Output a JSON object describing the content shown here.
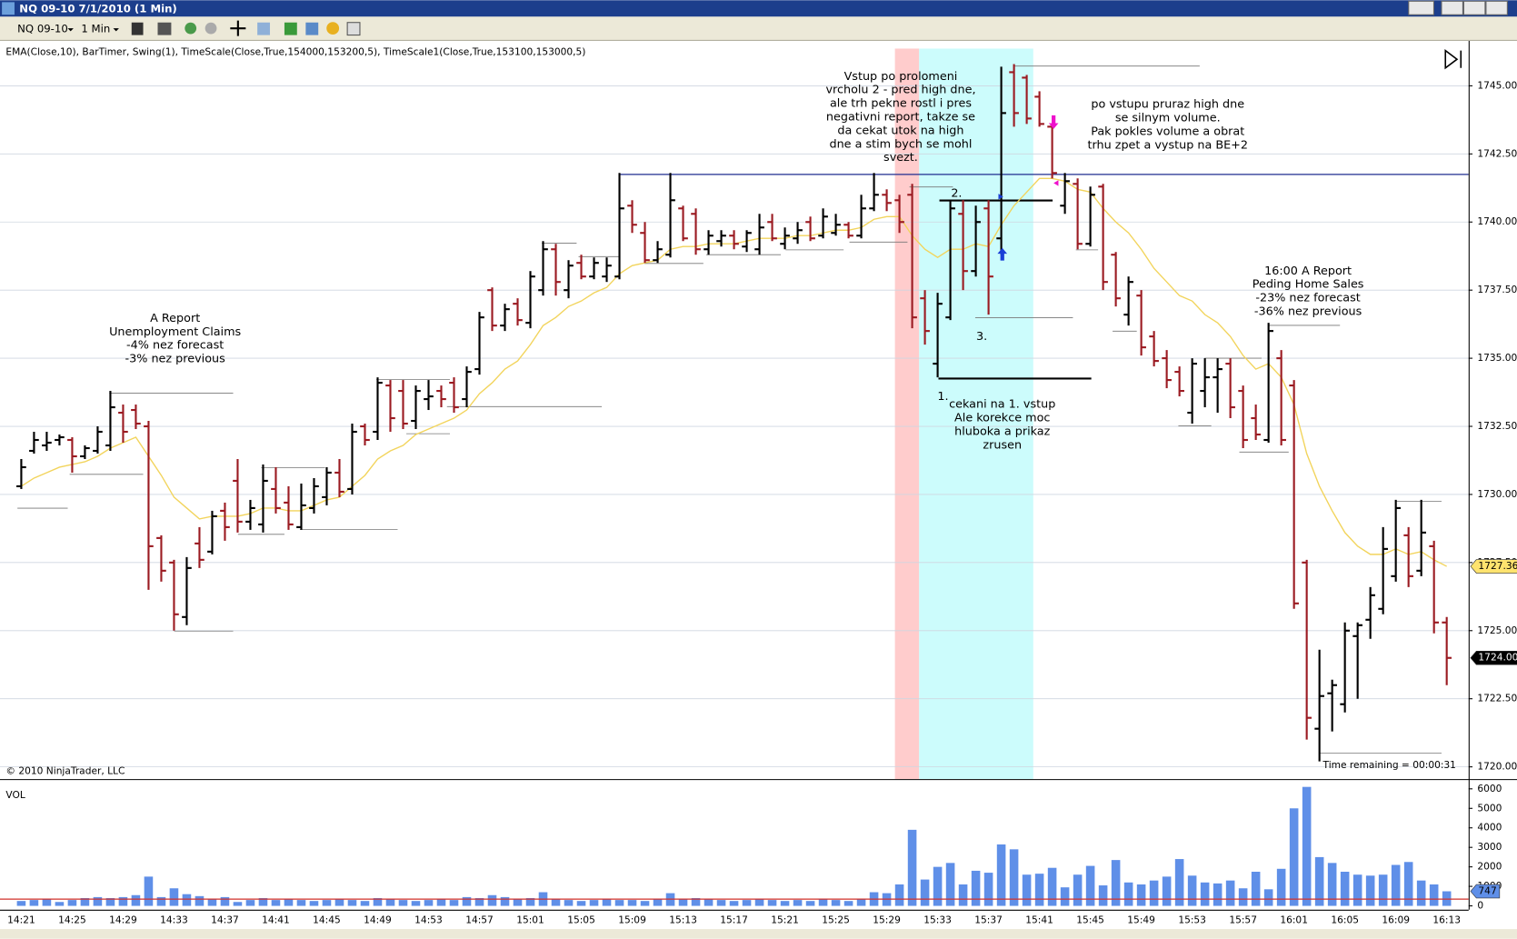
{
  "window": {
    "title": "NQ 09-10  7/1/2010 (1 Min)"
  },
  "toolbar": {
    "instrument": "NQ 09-10",
    "interval": "1 Min"
  },
  "chart_data": [
    {
      "type": "ohlc",
      "subtitle": "EMA(Close,10), BarTimer, Swing(1), TimeScale(Close,True,154000,153200,5), TimeScale1(Close,True,153100,153000,5)",
      "categories": [
        "14:21",
        null,
        null,
        null,
        "14:25",
        null,
        null,
        null,
        "14:29",
        null,
        null,
        null,
        "14:33",
        null,
        null,
        null,
        "14:37",
        null,
        null,
        null,
        "14:41",
        null,
        null,
        null,
        "14:45",
        null,
        null,
        null,
        "14:49",
        null,
        null,
        null,
        "14:53",
        null,
        null,
        null,
        "14:57",
        null,
        null,
        null,
        "15:01",
        null,
        null,
        null,
        "15:05",
        null,
        null,
        null,
        "15:09",
        null,
        null,
        null,
        "15:13",
        null,
        null,
        null,
        "15:17",
        null,
        null,
        null,
        "15:21",
        null,
        null,
        null,
        "15:25",
        null,
        null,
        null,
        "15:29",
        null,
        null,
        null,
        "15:33",
        null,
        null,
        null,
        "15:37",
        null,
        null,
        null,
        "15:41",
        null,
        null,
        null,
        "15:45",
        null,
        null,
        null,
        "15:49",
        null,
        null,
        null,
        "15:53",
        null,
        null,
        null,
        "15:57",
        null,
        null,
        null,
        "16:01",
        null,
        null,
        null,
        "16:05",
        null,
        null,
        null,
        "16:09",
        null,
        null,
        null,
        "16:13"
      ],
      "open": [
        1730.3,
        1731.6,
        1731.8,
        1732.0,
        1732.0,
        1731.4,
        1731.6,
        1731.8,
        1733.0,
        1733.1,
        1732.5,
        1728.4,
        1727.5,
        1725.5,
        1728.2,
        1727.9,
        1729.4,
        1730.5,
        1729.0,
        1728.9,
        1730.2,
        1729.7,
        1728.8,
        1729.5,
        1729.9,
        1730.8,
        1730.2,
        1732.5,
        1732.3,
        1734.0,
        1733.8,
        1732.7,
        1733.5,
        1733.8,
        1734.1,
        1733.5,
        1734.6,
        1737.5,
        1736.2,
        1737.0,
        1736.3,
        1737.5,
        1739.0,
        1737.5,
        1738.5,
        1738.0,
        1738.0,
        1738.0,
        1740.6,
        1739.6,
        1738.6,
        1738.8,
        1740.5,
        1740.3,
        1739.0,
        1739.3,
        1739.5,
        1739.1,
        1739.0,
        1740.0,
        1739.2,
        1739.4,
        1740.0,
        1739.5,
        1739.6,
        1739.9,
        1739.5,
        1740.5,
        1741.0,
        1740.8,
        1741.0,
        1737.2,
        1734.8,
        1736.5,
        1740.3,
        1738.2,
        1740.5,
        1739.4,
        1745.5,
        1745.3,
        1744.6,
        1743.5,
        1740.6,
        1741.4,
        1739.2,
        1741.3,
        1738.8,
        1736.6,
        1737.3,
        1735.8,
        1735.0,
        1734.5,
        1733.0,
        1733.8,
        1734.3,
        1734.8,
        1733.8,
        1732.8,
        1732.0,
        1735.0,
        1734.0,
        1727.5,
        1721.4,
        1722.7,
        1722.3,
        1724.8,
        1725.4,
        1725.8,
        1727.0,
        1728.5,
        1727.2,
        1728.1,
        1725.3
      ],
      "high": [
        1731.3,
        1732.3,
        1732.3,
        1732.2,
        1732.1,
        1731.8,
        1732.5,
        1733.8,
        1733.3,
        1733.3,
        1732.7,
        1728.5,
        1727.6,
        1727.7,
        1728.8,
        1729.4,
        1729.7,
        1731.3,
        1729.8,
        1731.1,
        1731.0,
        1730.3,
        1730.4,
        1730.6,
        1731.0,
        1731.3,
        1732.6,
        1732.6,
        1734.3,
        1734.2,
        1734.2,
        1734.0,
        1734.2,
        1734.0,
        1734.3,
        1734.7,
        1736.7,
        1737.6,
        1737.0,
        1737.2,
        1738.2,
        1739.3,
        1739.2,
        1738.6,
        1738.8,
        1738.7,
        1738.7,
        1741.8,
        1740.8,
        1740.0,
        1739.3,
        1741.8,
        1740.6,
        1740.5,
        1739.7,
        1739.7,
        1739.7,
        1739.7,
        1740.3,
        1740.3,
        1739.8,
        1740.0,
        1740.2,
        1740.5,
        1740.3,
        1740.0,
        1741.0,
        1741.8,
        1741.2,
        1741.0,
        1741.4,
        1737.5,
        1737.4,
        1740.8,
        1740.8,
        1740.6,
        1740.8,
        1745.7,
        1745.8,
        1745.4,
        1744.8,
        1743.6,
        1741.8,
        1741.6,
        1741.3,
        1741.4,
        1738.9,
        1738.0,
        1737.5,
        1736.0,
        1735.3,
        1734.7,
        1735.0,
        1735.0,
        1735.0,
        1735.0,
        1734.0,
        1733.3,
        1736.3,
        1735.3,
        1734.2,
        1727.6,
        1724.3,
        1723.2,
        1725.3,
        1725.3,
        1726.6,
        1728.8,
        1729.8,
        1728.8,
        1729.8,
        1728.3,
        1725.5
      ],
      "low": [
        1730.2,
        1731.5,
        1731.6,
        1731.8,
        1730.8,
        1731.3,
        1731.5,
        1731.6,
        1731.9,
        1732.4,
        1726.5,
        1726.8,
        1725.0,
        1725.2,
        1727.3,
        1727.8,
        1728.3,
        1728.6,
        1728.7,
        1728.6,
        1729.3,
        1728.7,
        1728.7,
        1729.3,
        1729.6,
        1729.9,
        1730.0,
        1731.8,
        1732.0,
        1732.3,
        1732.4,
        1732.4,
        1733.1,
        1733.2,
        1733.0,
        1733.2,
        1734.4,
        1736.0,
        1736.0,
        1736.2,
        1736.1,
        1737.3,
        1737.3,
        1737.2,
        1737.9,
        1737.9,
        1737.8,
        1737.9,
        1739.6,
        1738.5,
        1738.5,
        1738.7,
        1739.3,
        1738.8,
        1738.8,
        1739.1,
        1739.0,
        1738.9,
        1738.8,
        1739.3,
        1739.0,
        1739.2,
        1739.3,
        1739.4,
        1739.5,
        1739.4,
        1739.4,
        1740.4,
        1740.4,
        1739.6,
        1736.1,
        1735.5,
        1734.3,
        1736.4,
        1737.5,
        1738.0,
        1736.6,
        1738.8,
        1743.5,
        1743.6,
        1743.5,
        1741.6,
        1740.3,
        1739.0,
        1739.1,
        1737.5,
        1736.9,
        1736.2,
        1735.1,
        1734.7,
        1733.9,
        1733.6,
        1732.6,
        1733.2,
        1733.0,
        1732.8,
        1731.7,
        1732.0,
        1731.9,
        1731.8,
        1725.8,
        1721.0,
        1720.2,
        1721.3,
        1722.0,
        1722.5,
        1724.7,
        1725.6,
        1726.8,
        1726.6,
        1727.0,
        1724.9,
        1723.0
      ],
      "close": [
        1731.0,
        1732.0,
        1731.9,
        1732.1,
        1731.4,
        1731.7,
        1732.3,
        1733.2,
        1732.3,
        1732.6,
        1728.1,
        1727.2,
        1725.6,
        1727.3,
        1727.6,
        1729.2,
        1728.8,
        1729.0,
        1729.5,
        1730.5,
        1729.5,
        1728.9,
        1729.6,
        1730.3,
        1730.8,
        1730.1,
        1732.3,
        1732.0,
        1734.1,
        1732.8,
        1732.6,
        1733.8,
        1733.6,
        1733.5,
        1733.2,
        1734.5,
        1736.5,
        1736.2,
        1736.8,
        1736.4,
        1738.0,
        1739.0,
        1737.8,
        1738.4,
        1738.0,
        1738.5,
        1738.4,
        1740.5,
        1739.9,
        1738.6,
        1739.0,
        1740.8,
        1739.4,
        1739.0,
        1739.5,
        1739.5,
        1739.2,
        1739.6,
        1739.8,
        1739.4,
        1739.5,
        1739.7,
        1739.4,
        1740.2,
        1739.9,
        1739.5,
        1740.5,
        1741.0,
        1740.7,
        1740.0,
        1736.5,
        1736.0,
        1737.0,
        1740.5,
        1738.2,
        1740.0,
        1738.0,
        1744.0,
        1744.0,
        1743.8,
        1743.6,
        1741.8,
        1741.5,
        1739.2,
        1741.0,
        1737.8,
        1737.2,
        1737.8,
        1735.4,
        1734.9,
        1734.2,
        1733.8,
        1734.8,
        1734.3,
        1734.6,
        1733.2,
        1732.0,
        1732.2,
        1736.0,
        1732.0,
        1726.0,
        1721.8,
        1722.6,
        1723.0,
        1725.0,
        1725.2,
        1726.3,
        1728.0,
        1729.5,
        1727.0,
        1728.6,
        1725.3,
        1724.0
      ],
      "up_color": "#000000",
      "down_color": "#9b1b22",
      "ema": {
        "color": "#f2d45c",
        "values": [
          1730.3,
          1730.6,
          1730.8,
          1731.0,
          1731.1,
          1731.2,
          1731.4,
          1731.7,
          1731.9,
          1732.1,
          1731.4,
          1730.7,
          1729.9,
          1729.5,
          1729.1,
          1729.2,
          1729.2,
          1729.2,
          1729.3,
          1729.5,
          1729.5,
          1729.4,
          1729.4,
          1729.6,
          1729.8,
          1729.9,
          1730.3,
          1730.7,
          1731.3,
          1731.6,
          1731.8,
          1732.2,
          1732.4,
          1732.6,
          1732.8,
          1733.1,
          1733.7,
          1734.1,
          1734.6,
          1734.9,
          1735.5,
          1736.2,
          1736.5,
          1736.9,
          1737.1,
          1737.4,
          1737.6,
          1738.1,
          1738.4,
          1738.5,
          1738.6,
          1739.0,
          1739.1,
          1739.1,
          1739.2,
          1739.2,
          1739.2,
          1739.3,
          1739.4,
          1739.4,
          1739.4,
          1739.5,
          1739.5,
          1739.6,
          1739.7,
          1739.7,
          1739.8,
          1740.1,
          1740.2,
          1740.2,
          1739.5,
          1739.0,
          1738.7,
          1739.0,
          1739.0,
          1739.2,
          1739.1,
          1739.9,
          1740.6,
          1741.1,
          1741.6,
          1741.6,
          1741.5,
          1741.2,
          1741.1,
          1740.5,
          1740.0,
          1739.6,
          1739.0,
          1738.3,
          1737.8,
          1737.3,
          1737.1,
          1736.6,
          1736.3,
          1735.8,
          1735.1,
          1734.6,
          1734.8,
          1734.3,
          1733.3,
          1731.5,
          1730.3,
          1729.4,
          1728.6,
          1728.1,
          1727.8,
          1727.8,
          1728.0,
          1727.8,
          1727.9,
          1727.6,
          1727.36
        ]
      },
      "ylim": [
        1719.55,
        1746.65
      ],
      "yticks": [
        {
          "value": 1720,
          "label": "1720.00"
        },
        {
          "value": 1722.5,
          "label": "1722.50"
        },
        {
          "value": 1725,
          "label": "1725.00"
        },
        {
          "value": 1727.5,
          "label": "1727.50"
        },
        {
          "value": 1730,
          "label": "1730.00"
        },
        {
          "value": 1732.5,
          "label": "1732.50"
        },
        {
          "value": 1735,
          "label": "1735.00"
        },
        {
          "value": 1737.5,
          "label": "1737.50"
        },
        {
          "value": 1740,
          "label": "1740.00"
        },
        {
          "value": 1742.5,
          "label": "1742.50"
        },
        {
          "value": 1745,
          "label": "1745.00"
        }
      ],
      "grid": true,
      "price_markers": [
        {
          "value": 1727.36,
          "label": "1727.36",
          "color": "#ffe36e"
        },
        {
          "value": 1724,
          "label": "1724.00",
          "color": "#000000"
        }
      ],
      "annotations": [
        {
          "lines": [
            "A Report",
            "Unemployment Claims",
            "-4% nez forecast",
            "-3% nez previous"
          ]
        },
        {
          "lines": [
            "Vstup po prolomeni",
            "vrcholu 2 - pred high dne,",
            "ale trh pekne rostl i pres",
            "negativni report, takze se",
            "da cekat utok na high",
            "dne a stim bych se mohl",
            "svezt."
          ]
        },
        {
          "lines": [
            "po vstupu pruraz high dne",
            "se silnym volume.",
            "Pak pokles volume a obrat",
            "trhu zpet a vystup na BE+2"
          ]
        },
        {
          "lines": [
            "16:00 A Report",
            "Peding Home Sales",
            "-23% nez forecast",
            "-36% nez previous"
          ]
        },
        {
          "lines": [
            "cekani na 1. vstup",
            "Ale korekce moc",
            "hluboka a prikaz",
            "zrusen"
          ]
        }
      ],
      "markers": [
        "1.",
        "2.",
        "3."
      ],
      "copyright": "© 2010 NinjaTrader, LLC",
      "bar_timer": "Time remaining = 00:00:31"
    },
    {
      "type": "bar",
      "title": "VOL",
      "values": [
        250,
        300,
        350,
        200,
        300,
        400,
        450,
        400,
        450,
        550,
        1500,
        450,
        900,
        600,
        500,
        350,
        450,
        200,
        300,
        400,
        300,
        350,
        300,
        250,
        300,
        350,
        300,
        250,
        400,
        350,
        300,
        250,
        300,
        350,
        300,
        450,
        400,
        550,
        450,
        350,
        400,
        700,
        350,
        300,
        250,
        300,
        350,
        300,
        300,
        250,
        350,
        650,
        350,
        400,
        350,
        300,
        250,
        300,
        350,
        300,
        250,
        300,
        250,
        350,
        300,
        250,
        350,
        700,
        650,
        1100,
        3900,
        1350,
        2000,
        2200,
        1100,
        1800,
        1700,
        3150,
        2900,
        1600,
        1650,
        1950,
        950,
        1600,
        2050,
        1050,
        2350,
        1200,
        1100,
        1300,
        1500,
        2400,
        1550,
        1200,
        1150,
        1300,
        900,
        1750,
        850,
        1900,
        5000,
        6100,
        2500,
        2200,
        1750,
        1600,
        1550,
        1600,
        2100,
        2250,
        1300,
        1100,
        747
      ],
      "color": "#5f8fe8",
      "ylim": [
        0,
        6350
      ],
      "yticks": [
        0,
        1000,
        2000,
        3000,
        4000,
        5000,
        6000
      ],
      "last_value": {
        "value": 747,
        "label": "747",
        "color": "#5f8fe8"
      }
    }
  ]
}
